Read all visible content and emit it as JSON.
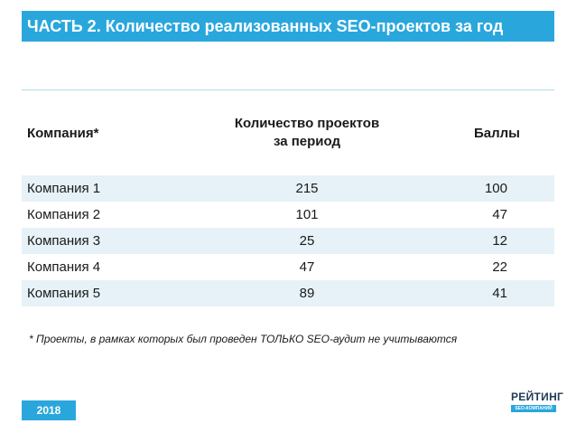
{
  "title": "ЧАСТЬ 2. Количество реализованных SEO-проектов за год",
  "table": {
    "headers": {
      "company": "Компания*",
      "projects_line1": "Количество проектов",
      "projects_line2": "за период",
      "points": "Баллы"
    },
    "rows": [
      {
        "company": "Компания 1",
        "projects": "215",
        "points": "100"
      },
      {
        "company": "Компания 2",
        "projects": "101",
        "points": "47"
      },
      {
        "company": "Компания 3",
        "projects": "25",
        "points": "12"
      },
      {
        "company": "Компания 4",
        "projects": "47",
        "points": "22"
      },
      {
        "company": "Компания 5",
        "projects": "89",
        "points": "41"
      }
    ]
  },
  "footnote": "* Проекты, в рамках которых был проведен ТОЛЬКО SEO-аудит не учитываются",
  "year": "2018",
  "logo": {
    "word": "РЕЙТИНГ",
    "sub": "SEO-КОМПАНИЙ"
  },
  "colors": {
    "accent": "#29a7dd",
    "row_stripe": "#e6f2f7",
    "logo_text": "#1e3a57"
  }
}
